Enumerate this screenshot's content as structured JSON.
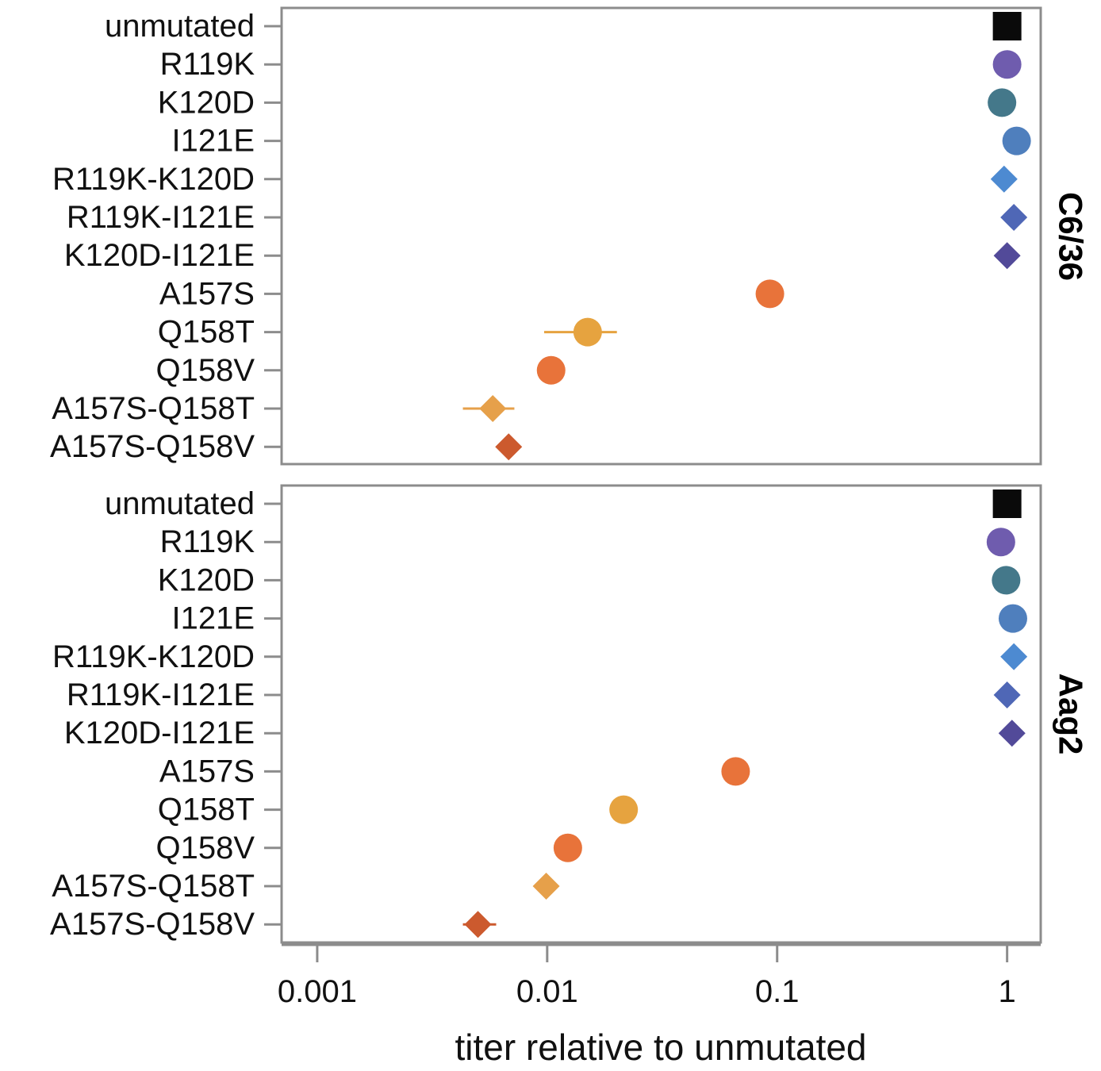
{
  "chart_data": {
    "type": "scatter",
    "subtype": "faceted dot plot with error bars",
    "xlabel": "titer relative to unmutated",
    "x_scale": "log",
    "xlim": [
      0.0007,
      1.4
    ],
    "x_ticks": [
      {
        "value": 0.001,
        "label": "0.001"
      },
      {
        "value": 0.01,
        "label": "0.01"
      },
      {
        "value": 0.1,
        "label": "0.1"
      },
      {
        "value": 1,
        "label": "1"
      }
    ],
    "categories": [
      "unmutated",
      "R119K",
      "K120D",
      "I121E",
      "R119K-K120D",
      "R119K-I121E",
      "K120D-I121E",
      "A157S",
      "Q158T",
      "Q158V",
      "A157S-Q158T",
      "A157S-Q158V"
    ],
    "styles": {
      "unmutated": {
        "shape": "square",
        "color": "#0a0a0a"
      },
      "R119K": {
        "shape": "circle",
        "color": "#6f5cae"
      },
      "K120D": {
        "shape": "circle",
        "color": "#44788a"
      },
      "I121E": {
        "shape": "circle",
        "color": "#4f7fbd"
      },
      "R119K-K120D": {
        "shape": "diamond",
        "color": "#4d8ad1"
      },
      "R119K-I121E": {
        "shape": "diamond",
        "color": "#4f67b6"
      },
      "K120D-I121E": {
        "shape": "diamond",
        "color": "#524a99"
      },
      "A157S": {
        "shape": "circle",
        "color": "#e8733a"
      },
      "Q158T": {
        "shape": "circle",
        "color": "#e6a33f"
      },
      "Q158V": {
        "shape": "circle",
        "color": "#e8733a"
      },
      "A157S-Q158T": {
        "shape": "diamond",
        "color": "#e6a04a"
      },
      "A157S-Q158V": {
        "shape": "diamond",
        "color": "#cc5a2e"
      }
    },
    "facets": [
      {
        "label": "C6/36",
        "points": [
          {
            "category": "unmutated",
            "value": 1.0
          },
          {
            "category": "R119K",
            "value": 1.0
          },
          {
            "category": "K120D",
            "value": 0.95
          },
          {
            "category": "I121E",
            "value": 1.1
          },
          {
            "category": "R119K-K120D",
            "value": 0.97
          },
          {
            "category": "R119K-I121E",
            "value": 1.07
          },
          {
            "category": "K120D-I121E",
            "value": 1.0
          },
          {
            "category": "A157S",
            "value": 0.093
          },
          {
            "category": "Q158T",
            "value": 0.015,
            "err_low": 0.0097,
            "err_high": 0.0201
          },
          {
            "category": "Q158V",
            "value": 0.0104
          },
          {
            "category": "A157S-Q158T",
            "value": 0.0058,
            "err_low": 0.0043,
            "err_high": 0.0072
          },
          {
            "category": "A157S-Q158V",
            "value": 0.0068
          }
        ]
      },
      {
        "label": "Aag2",
        "points": [
          {
            "category": "unmutated",
            "value": 1.0
          },
          {
            "category": "R119K",
            "value": 0.94
          },
          {
            "category": "K120D",
            "value": 0.99
          },
          {
            "category": "I121E",
            "value": 1.06
          },
          {
            "category": "R119K-K120D",
            "value": 1.07
          },
          {
            "category": "R119K-I121E",
            "value": 1.0
          },
          {
            "category": "K120D-I121E",
            "value": 1.05
          },
          {
            "category": "A157S",
            "value": 0.066
          },
          {
            "category": "Q158T",
            "value": 0.0215
          },
          {
            "category": "Q158V",
            "value": 0.0123
          },
          {
            "category": "A157S-Q158T",
            "value": 0.0099
          },
          {
            "category": "A157S-Q158V",
            "value": 0.005,
            "err_low": 0.0043,
            "err_high": 0.006
          }
        ]
      }
    ]
  }
}
